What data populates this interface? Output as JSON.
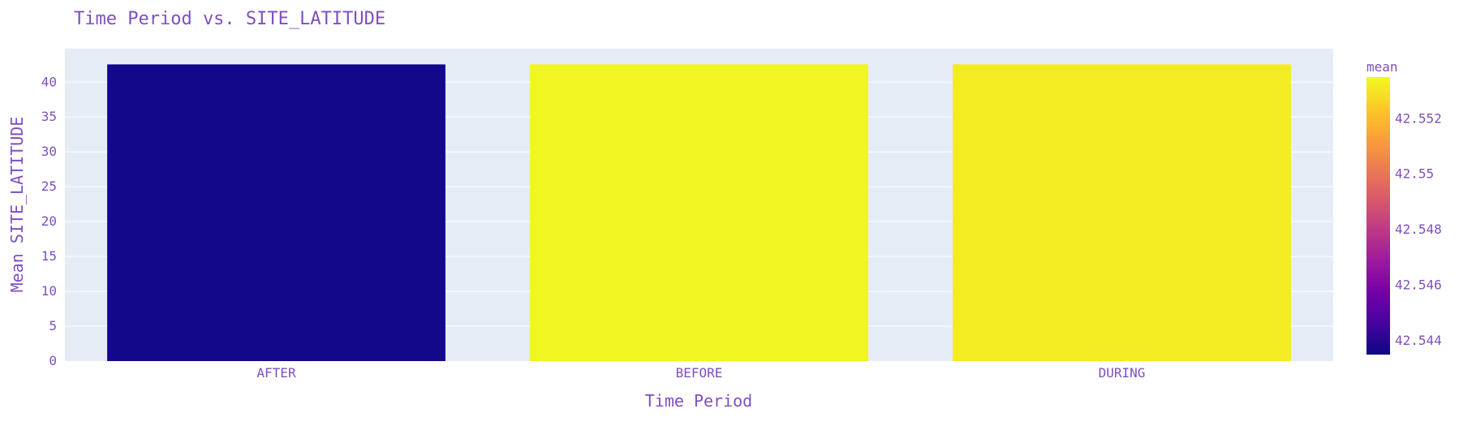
{
  "chart_data": {
    "type": "bar",
    "title": "Time Period vs. SITE_LATITUDE",
    "xlabel": "Time Period",
    "ylabel": "Mean SITE_LATITUDE",
    "categories": [
      "AFTER",
      "BEFORE",
      "DURING"
    ],
    "values": [
      42.5436,
      42.5534,
      42.5532
    ],
    "ylim": [
      0,
      44.8
    ],
    "yticks": [
      0,
      5,
      10,
      15,
      20,
      25,
      30,
      35,
      40
    ],
    "grid": true,
    "plot_background": "#e5ecf6",
    "text_color": "#7e4fc0",
    "colorbar": {
      "title": "mean",
      "range": [
        42.5435,
        42.5535
      ],
      "ticks": [
        42.544,
        42.546,
        42.548,
        42.55,
        42.552
      ],
      "tick_labels": [
        "42.544",
        "42.546",
        "42.548",
        "42.55",
        "42.552"
      ],
      "colorscale": [
        "#0d0887",
        "#46039f",
        "#7201a8",
        "#9c179e",
        "#bd3786",
        "#d8576b",
        "#ed7953",
        "#fb9f3a",
        "#fdca26",
        "#f0f921"
      ]
    }
  }
}
